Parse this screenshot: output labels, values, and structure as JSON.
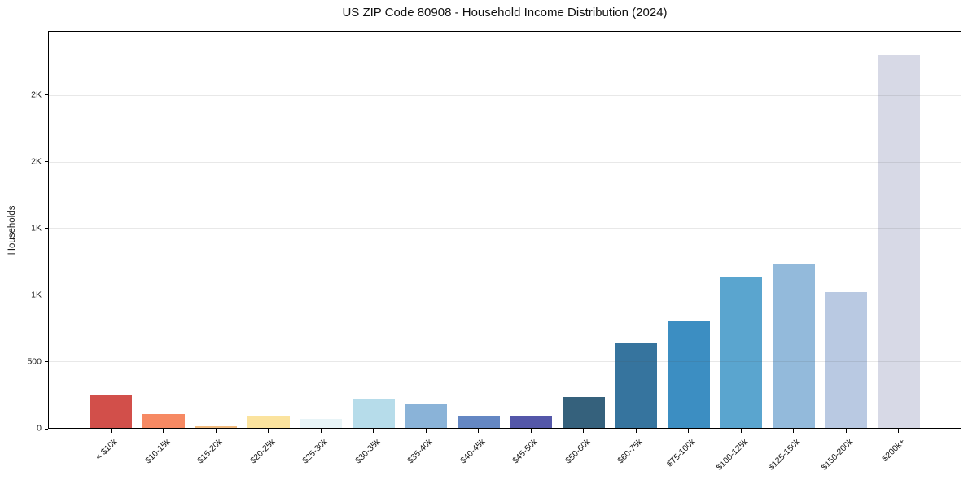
{
  "chart_data": {
    "type": "bar",
    "title": "US ZIP Code 80908 - Household Income Distribution (2024)",
    "xlabel": "",
    "ylabel": "Households",
    "categories": [
      "< $10k",
      "$10-15k",
      "$15-20k",
      "$20-25k",
      "$25-30k",
      "$30-35k",
      "$35-40k",
      "$40-45k",
      "$45-50k",
      "$50-60k",
      "$60-75k",
      "$75-100k",
      "$100-125k",
      "$125-150k",
      "$150-200k",
      "$200k+"
    ],
    "values": [
      245,
      105,
      15,
      90,
      70,
      220,
      175,
      90,
      90,
      230,
      640,
      810,
      1135,
      1235,
      1025,
      2800
    ],
    "bar_colors": [
      "#d24f4a",
      "#f68963",
      "#f2bc80",
      "#fbe39e",
      "#e8f4f7",
      "#b6dcea",
      "#8ab3d8",
      "#6487c3",
      "#5457a9",
      "#35617c",
      "#36749e",
      "#3c8ec2",
      "#5aa5cf",
      "#93badb",
      "#b9c9e2",
      "#d7d9e6"
    ],
    "ylim": [
      0,
      2980
    ],
    "yticks": [
      {
        "value": 0,
        "label": "0"
      },
      {
        "value": 500,
        "label": "500"
      },
      {
        "value": 1000,
        "label": "1K"
      },
      {
        "value": 1500,
        "label": "1K"
      },
      {
        "value": 2000,
        "label": "2K"
      },
      {
        "value": 2500,
        "label": "2K"
      }
    ],
    "grid": "horizontal-light",
    "legend": "none",
    "x_tick_rotation_deg": 45
  }
}
